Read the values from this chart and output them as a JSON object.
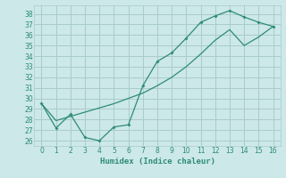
{
  "xlabel": "Humidex (Indice chaleur)",
  "line1_x": [
    0,
    1,
    2,
    3,
    4,
    5,
    6,
    7,
    8,
    9,
    10,
    11,
    12,
    13,
    14,
    15,
    16
  ],
  "line1_y": [
    29.5,
    27.2,
    28.5,
    26.3,
    26.0,
    27.3,
    27.5,
    31.2,
    33.5,
    34.3,
    35.7,
    37.2,
    37.8,
    38.3,
    37.7,
    37.2,
    36.8
  ],
  "line2_x": [
    0,
    1,
    2,
    3,
    4,
    5,
    6,
    7,
    8,
    9,
    10,
    11,
    12,
    13,
    14,
    15,
    16
  ],
  "line2_y": [
    29.5,
    27.9,
    28.3,
    28.7,
    29.1,
    29.5,
    30.0,
    30.5,
    31.2,
    32.0,
    33.0,
    34.2,
    35.5,
    36.5,
    35.0,
    35.8,
    36.8
  ],
  "line_color": "#2e8b7a",
  "bg_color": "#cce8e8",
  "grid_color": "#aacccc",
  "ylim_min": 25.5,
  "ylim_max": 38.8,
  "xlim_min": -0.5,
  "xlim_max": 16.5,
  "yticks": [
    26,
    27,
    28,
    29,
    30,
    31,
    32,
    33,
    34,
    35,
    36,
    37,
    38
  ],
  "xticks": [
    0,
    1,
    2,
    3,
    4,
    5,
    6,
    7,
    8,
    9,
    10,
    11,
    12,
    13,
    14,
    15,
    16
  ]
}
